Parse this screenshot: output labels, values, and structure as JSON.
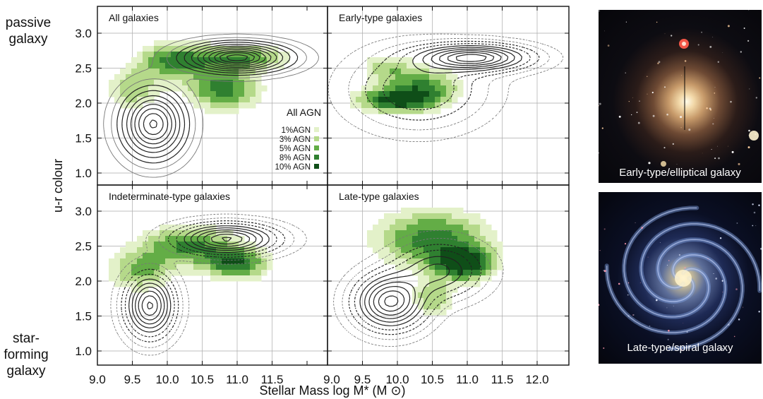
{
  "side_labels": {
    "top": [
      "passive",
      "galaxy"
    ],
    "bottom": [
      "star-",
      "forming",
      "galaxy"
    ]
  },
  "colors": {
    "agn": [
      "#e3f1c9",
      "#b5d98a",
      "#63ad46",
      "#2f8030",
      "#0f4e18"
    ],
    "contour": "#222222",
    "grid": "#aaaaaa"
  },
  "chart_data": {
    "type": "contour",
    "ylabel": "u-r colour",
    "xlabel": "Stellar Mass log M* (M ⊙)",
    "xlim": [
      9.0,
      12.4
    ],
    "ylim": [
      0.8,
      3.3
    ],
    "xticks_left": [
      "9.0",
      "9.5",
      "10.0",
      "10.5",
      "11.0",
      "11.5"
    ],
    "xticks_right": [
      "9.0",
      "9.5",
      "10.0",
      "10.5",
      "11.0",
      "11.5",
      "12.0"
    ],
    "yticks": [
      "1.0",
      "1.5",
      "2.0",
      "2.5",
      "3.0"
    ],
    "grid": true,
    "legend": {
      "title": "All AGN",
      "placement": "right",
      "entries": [
        "1%AGN",
        "3% AGN",
        "5% AGN",
        "8% AGN",
        "10% AGN"
      ]
    },
    "panels": [
      {
        "title": "All galaxies",
        "galaxy_peaks": [
          {
            "x": 9.8,
            "y": 1.7,
            "sx": 0.28,
            "sy": 0.3,
            "w": 1.0
          },
          {
            "x": 11.0,
            "y": 2.65,
            "sx": 0.45,
            "sy": 0.13,
            "w": 1.15
          }
        ],
        "agn_peaks": [
          {
            "x": 10.1,
            "y": 2.6,
            "sx": 0.35,
            "sy": 0.18,
            "w": 0.7
          },
          {
            "x": 10.8,
            "y": 2.2,
            "sx": 0.35,
            "sy": 0.2,
            "w": 0.75
          },
          {
            "x": 11.05,
            "y": 2.65,
            "sx": 0.45,
            "sy": 0.12,
            "w": 0.65
          },
          {
            "x": 9.5,
            "y": 2.2,
            "sx": 0.25,
            "sy": 0.2,
            "w": 0.45
          }
        ]
      },
      {
        "title": "Early-type galaxies",
        "galaxy_peaks": [
          {
            "x": 11.1,
            "y": 2.65,
            "sx": 0.5,
            "sy": 0.12,
            "w": 1.0
          },
          {
            "x": 10.3,
            "y": 2.2,
            "sx": 0.6,
            "sy": 0.35,
            "w": 0.4
          }
        ],
        "agn_peaks": [
          {
            "x": 10.0,
            "y": 2.05,
            "sx": 0.38,
            "sy": 0.12,
            "w": 0.95
          },
          {
            "x": 10.4,
            "y": 2.25,
            "sx": 0.35,
            "sy": 0.18,
            "w": 0.6
          },
          {
            "x": 9.85,
            "y": 2.5,
            "sx": 0.25,
            "sy": 0.14,
            "w": 0.4
          }
        ]
      },
      {
        "title": "Indeterminate-type galaxies",
        "galaxy_peaks": [
          {
            "x": 9.75,
            "y": 1.65,
            "sx": 0.22,
            "sy": 0.28,
            "w": 1.0
          },
          {
            "x": 10.85,
            "y": 2.6,
            "sx": 0.45,
            "sy": 0.14,
            "w": 1.0
          }
        ],
        "agn_peaks": [
          {
            "x": 10.3,
            "y": 2.5,
            "sx": 0.45,
            "sy": 0.2,
            "w": 0.7
          },
          {
            "x": 11.0,
            "y": 2.25,
            "sx": 0.3,
            "sy": 0.15,
            "w": 0.8
          },
          {
            "x": 9.6,
            "y": 2.15,
            "sx": 0.3,
            "sy": 0.2,
            "w": 0.5
          }
        ]
      },
      {
        "title": "Late-type galaxies",
        "galaxy_peaks": [
          {
            "x": 9.9,
            "y": 1.7,
            "sx": 0.32,
            "sy": 0.25,
            "w": 1.0
          },
          {
            "x": 10.6,
            "y": 2.15,
            "sx": 0.4,
            "sy": 0.25,
            "w": 0.55
          }
        ],
        "agn_peaks": [
          {
            "x": 10.95,
            "y": 2.25,
            "sx": 0.28,
            "sy": 0.16,
            "w": 1.0
          },
          {
            "x": 10.5,
            "y": 2.6,
            "sx": 0.55,
            "sy": 0.28,
            "w": 0.75
          },
          {
            "x": 10.5,
            "y": 1.75,
            "sx": 0.2,
            "sy": 0.18,
            "w": 0.45
          }
        ]
      }
    ]
  },
  "images": [
    {
      "caption": "Early-type/elliptical galaxy",
      "kind": "elliptical"
    },
    {
      "caption": "Late-type/spiral galaxy",
      "kind": "spiral"
    }
  ]
}
